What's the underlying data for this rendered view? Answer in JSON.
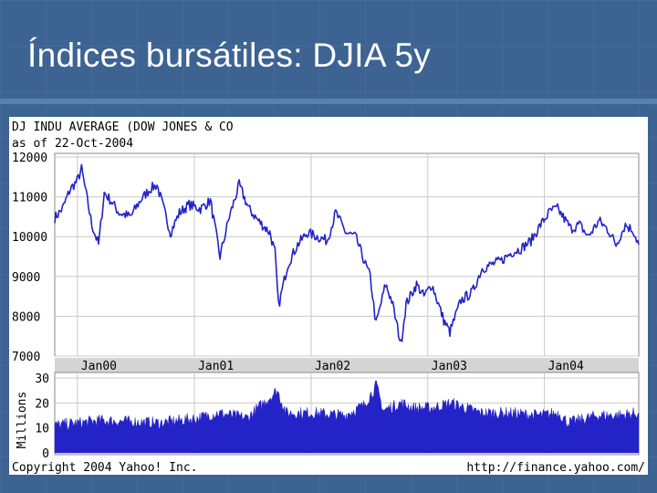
{
  "slide": {
    "title": "Índices bursátiles: DJIA 5y"
  },
  "colors": {
    "background": "#3d6392",
    "series": "#2323c8",
    "grid": "#c8c8c8",
    "axis_band": "#d4d4d4"
  },
  "chart_data": [
    {
      "type": "line",
      "title": "DJ INDU AVERAGE (DOW JONES & CO",
      "subtitle": "as of 22-Oct-2004",
      "xlabel": "",
      "ylabel": "",
      "xlim": [
        "1999-10-22",
        "2004-10-22"
      ],
      "ylim": [
        7000,
        12000
      ],
      "y_ticks": [
        12000,
        11000,
        10000,
        9000,
        8000,
        7000
      ],
      "y_tick_labels": [
        "12000",
        "11000",
        "10000",
        "9000",
        "8000",
        "7000"
      ],
      "x_ticks": [
        "2000-01-01",
        "2001-01-01",
        "2002-01-01",
        "2003-01-01",
        "2004-01-01"
      ],
      "x_tick_labels": [
        "Jan00",
        "Jan01",
        "Jan02",
        "Jan03",
        "Jan04"
      ],
      "grid": true,
      "series": [
        {
          "x": [
            "1999-10-22",
            "1999-11-15",
            "1999-12-10",
            "1999-12-31",
            "2000-01-14",
            "2000-02-15",
            "2000-03-07",
            "2000-03-25",
            "2000-04-15",
            "2000-05-10",
            "2000-06-15",
            "2000-07-15",
            "2000-08-15",
            "2000-09-06",
            "2000-10-18",
            "2000-11-15",
            "2000-12-15",
            "2001-01-20",
            "2001-02-20",
            "2001-03-22",
            "2001-04-20",
            "2001-05-21",
            "2001-06-20",
            "2001-07-20",
            "2001-08-25",
            "2001-09-10",
            "2001-09-21",
            "2001-10-20",
            "2001-11-20",
            "2001-12-20",
            "2002-01-20",
            "2002-02-20",
            "2002-03-19",
            "2002-04-20",
            "2002-05-20",
            "2002-06-20",
            "2002-07-05",
            "2002-07-23",
            "2002-08-22",
            "2002-09-10",
            "2002-10-09",
            "2002-10-25",
            "2002-11-27",
            "2002-12-20",
            "2003-01-14",
            "2003-02-20",
            "2003-03-11",
            "2003-04-15",
            "2003-05-20",
            "2003-06-20",
            "2003-07-20",
            "2003-08-20",
            "2003-09-20",
            "2003-10-20",
            "2003-11-20",
            "2003-12-20",
            "2004-01-20",
            "2004-02-11",
            "2004-03-24",
            "2004-04-20",
            "2004-05-17",
            "2004-06-20",
            "2004-07-20",
            "2004-08-12",
            "2004-09-10",
            "2004-10-05",
            "2004-10-22"
          ],
          "values": [
            10470,
            10700,
            11200,
            11400,
            11700,
            10300,
            9800,
            11100,
            10900,
            10600,
            10500,
            10900,
            11200,
            11300,
            10100,
            10600,
            10800,
            10700,
            10900,
            9500,
            10500,
            11300,
            10700,
            10400,
            10100,
            9600,
            8250,
            9300,
            9800,
            10100,
            10000,
            9900,
            10600,
            10100,
            10000,
            9300,
            9000,
            7800,
            8800,
            8400,
            7300,
            8300,
            8800,
            8500,
            8800,
            7900,
            7600,
            8400,
            8600,
            9200,
            9300,
            9400,
            9600,
            9700,
            9900,
            10300,
            10650,
            10700,
            10200,
            10300,
            10000,
            10400,
            10150,
            9800,
            10300,
            10150,
            9800
          ]
        }
      ]
    },
    {
      "type": "bar",
      "title": "",
      "ylabel": "Millions",
      "ylim": [
        0,
        30
      ],
      "y_ticks": [
        30,
        20,
        10,
        0
      ],
      "y_tick_labels": [
        "30",
        "20",
        "10",
        "0"
      ],
      "xlim": [
        "1999-10-22",
        "2004-10-22"
      ],
      "series": [
        {
          "x": [
            "1999-10-22",
            "2000-03-15",
            "2000-09-15",
            "2001-01-15",
            "2001-03-15",
            "2001-06-15",
            "2001-09-17",
            "2001-10-15",
            "2002-01-15",
            "2002-04-15",
            "2002-06-15",
            "2002-07-24",
            "2002-08-15",
            "2002-10-10",
            "2002-11-15",
            "2003-01-15",
            "2003-03-15",
            "2003-06-15",
            "2003-09-15",
            "2003-12-15",
            "2004-02-15",
            "2004-03-15",
            "2004-06-15",
            "2004-08-15",
            "2004-10-22"
          ],
          "values": [
            11,
            13,
            12,
            14,
            16,
            14,
            25,
            16,
            16,
            15,
            19,
            27,
            17,
            20,
            18,
            18,
            20,
            16,
            16,
            15,
            16,
            12,
            15,
            15,
            16
          ]
        }
      ]
    }
  ],
  "footer": {
    "copyright": "Copyright 2004 Yahoo! Inc.",
    "url": "http://finance.yahoo.com/"
  }
}
